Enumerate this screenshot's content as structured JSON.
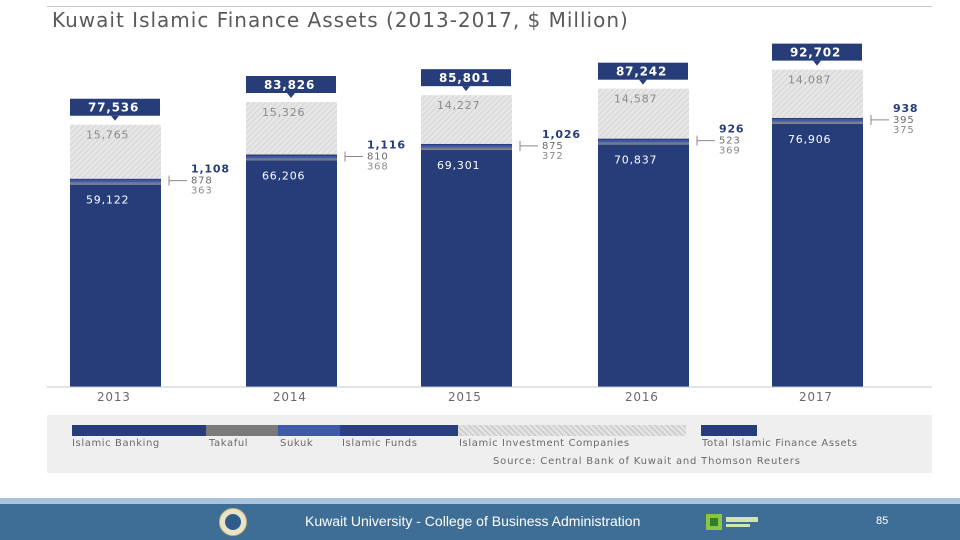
{
  "chart_data": {
    "type": "bar",
    "title": "Kuwait Islamic Finance Assets (2013-2017, $ Million)",
    "categories": [
      "2013",
      "2014",
      "2015",
      "2016",
      "2017"
    ],
    "totals": [
      77536,
      83826,
      85801,
      87242,
      92702
    ],
    "total_labels": [
      "77,536",
      "83,826",
      "85,801",
      "87,242",
      "92,702"
    ],
    "series": [
      {
        "name": "Islamic Banking",
        "color": "#263d7a",
        "values": [
          59122,
          66206,
          69301,
          70837,
          76906
        ],
        "labels": [
          "59,122",
          "66,206",
          "69,301",
          "70,837",
          "76,906"
        ]
      },
      {
        "name": "Takaful",
        "color": "#7a7a7a",
        "values": [
          363,
          368,
          372,
          369,
          375
        ],
        "labels": [
          "363",
          "368",
          "372",
          "369",
          "375"
        ]
      },
      {
        "name": "Sukuk",
        "color": "#3e5aa8",
        "values": [
          878,
          810,
          875,
          523,
          395
        ],
        "labels": [
          "878",
          "810",
          "875",
          "523",
          "395"
        ]
      },
      {
        "name": "Islamic Funds",
        "color": "#2a3f82",
        "values": [
          1108,
          1116,
          1026,
          926,
          938
        ],
        "labels": [
          "1,108",
          "1,116",
          "1,026",
          "926",
          "938"
        ]
      },
      {
        "name": "Islamic Investment Companies",
        "color": "#dcdcdc",
        "values": [
          15765,
          15326,
          14227,
          14587,
          14087
        ],
        "labels": [
          "15,765",
          "15,326",
          "14,227",
          "14,587",
          "14,087"
        ]
      }
    ],
    "legend_total": {
      "name": "Total Islamic Finance Assets",
      "color": "#263d7a"
    },
    "ylim": [
      0,
      100000
    ],
    "xlabel": "",
    "ylabel": "",
    "grid": false,
    "legend_position": "bottom"
  },
  "source": "Source: Central Bank of Kuwait and Thomson Reuters",
  "footer": {
    "text": "Kuwait University - College of Business Administration",
    "page_number": "85"
  }
}
